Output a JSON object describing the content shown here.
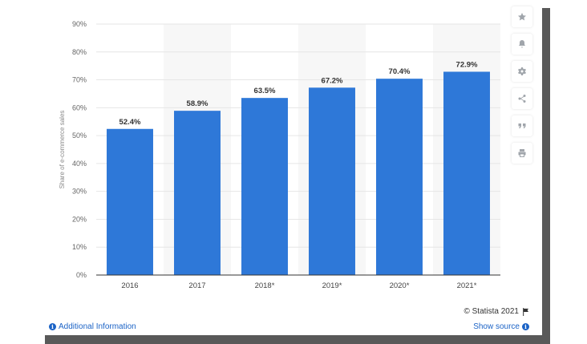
{
  "chart_data": {
    "type": "bar",
    "categories": [
      "2016",
      "2017",
      "2018*",
      "2019*",
      "2020*",
      "2021*"
    ],
    "values": [
      52.4,
      58.9,
      63.5,
      67.2,
      70.4,
      72.9
    ],
    "value_labels": [
      "52.4%",
      "58.9%",
      "63.5%",
      "67.2%",
      "70.4%",
      "72.9%"
    ],
    "ylabel": "Share of e-commerce sales",
    "ylim": [
      0,
      90
    ],
    "y_ticks": [
      0,
      10,
      20,
      30,
      40,
      50,
      60,
      70,
      80,
      90
    ],
    "y_tick_labels": [
      "0%",
      "10%",
      "20%",
      "30%",
      "40%",
      "50%",
      "60%",
      "70%",
      "80%",
      "90%"
    ],
    "grid": true,
    "bar_color": "#2e78d8"
  },
  "toolbar": {
    "icons": [
      "star-icon",
      "bell-icon",
      "gear-icon",
      "share-icon",
      "quote-icon",
      "print-icon"
    ]
  },
  "footer": {
    "copyright": "© Statista 2021",
    "additional_info": "Additional Information",
    "show_source": "Show source"
  }
}
